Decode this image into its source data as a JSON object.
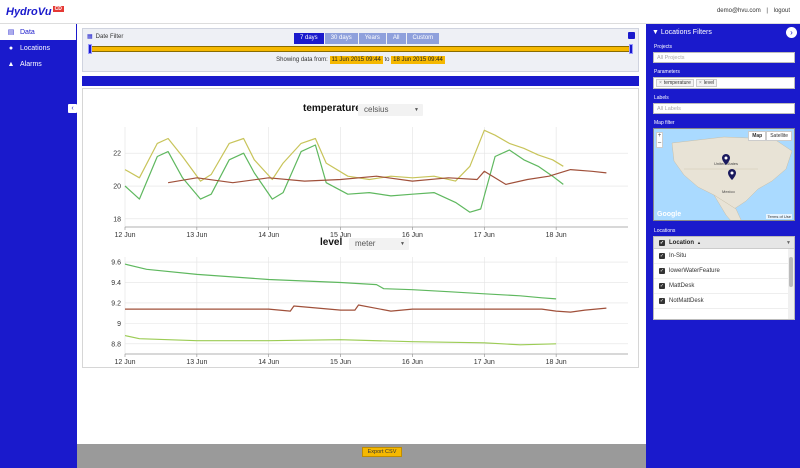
{
  "header": {
    "logo": {
      "text": "HydroVu",
      "badge": "CD"
    },
    "user_email": "demo@hvu.com",
    "logout_label": "logout"
  },
  "sidebar": {
    "items": [
      {
        "label": "Data",
        "icon": "chart-icon",
        "active": true
      },
      {
        "label": "Locations",
        "icon": "map-pin-icon",
        "active": false
      },
      {
        "label": "Alarms",
        "icon": "bell-icon",
        "active": false
      }
    ],
    "collapse_icon": "chevron-left-icon"
  },
  "date_filter": {
    "title": "Date Filter",
    "tabs": [
      {
        "label": "7 days",
        "active": true
      },
      {
        "label": "30 days",
        "active": false
      },
      {
        "label": "Years",
        "active": false
      },
      {
        "label": "All",
        "active": false
      },
      {
        "label": "Custom",
        "active": false
      }
    ],
    "range_prefix": "Showing data from:",
    "range_from": "11 Jun 2015 09:44",
    "range_to_word": "to",
    "range_to": "18 Jun 2015 09:44"
  },
  "charts": {
    "temperature": {
      "title": "temperature",
      "unit": "celsius"
    },
    "level": {
      "title": "level",
      "unit": "meter"
    }
  },
  "footer": {
    "export_label": "Export CSV"
  },
  "right_panel": {
    "title": "Locations Filters",
    "projects_label": "Projects",
    "projects_placeholder": "All Projects",
    "parameters_label": "Parameters",
    "parameters": [
      "temperature",
      "level"
    ],
    "labels_label": "Labels",
    "labels_placeholder": "All Labels",
    "map_filter_label": "Map filter",
    "map_tabs": [
      {
        "label": "Map",
        "active": true
      },
      {
        "label": "Satellite",
        "active": false
      }
    ],
    "map_google": "Google",
    "map_terms": "Terms of Use",
    "map_places": [
      "United States",
      "Mexico"
    ],
    "locations_label": "Locations",
    "locations_column": "Location",
    "locations": [
      "In-Situ",
      "lowerWaterFeature",
      "MattDesk",
      "NotMattDesk"
    ]
  },
  "colors": {
    "brand_blue": "#1a1acc",
    "accent_yellow": "#f5b800"
  },
  "chart_data": [
    {
      "type": "line",
      "title": "temperature",
      "ylabel": "celsius",
      "x_ticks": [
        "12 Jun",
        "13 Jun",
        "14 Jun",
        "15 Jun",
        "16 Jun",
        "17 Jun",
        "18 Jun"
      ],
      "y_ticks": [
        18,
        20,
        22
      ],
      "ylim": [
        17.5,
        23.6
      ],
      "grid": true,
      "series": [
        {
          "color": "#c8c45a",
          "x": [
            0,
            0.2,
            0.45,
            0.6,
            0.8,
            1.05,
            1.2,
            1.45,
            1.65,
            1.8,
            2.05,
            2.2,
            2.45,
            2.65,
            2.8,
            3.1,
            3.4,
            3.7,
            4.0,
            4.3,
            4.6,
            4.8,
            5.0,
            5.15,
            5.35,
            5.55,
            5.75,
            5.95,
            6.1
          ],
          "y": [
            21.0,
            20.5,
            22.6,
            22.9,
            21.8,
            20.3,
            20.7,
            22.6,
            22.9,
            21.6,
            20.4,
            21.4,
            22.6,
            22.9,
            21.4,
            20.6,
            20.4,
            20.6,
            20.5,
            20.6,
            20.3,
            21.2,
            23.4,
            23.1,
            22.6,
            22.3,
            21.9,
            21.6,
            21.2
          ]
        },
        {
          "color": "#5fb85f",
          "x": [
            0,
            0.2,
            0.45,
            0.6,
            0.8,
            1.05,
            1.2,
            1.45,
            1.65,
            1.8,
            2.05,
            2.2,
            2.45,
            2.65,
            2.8,
            3.1,
            3.4,
            3.7,
            4.0,
            4.3,
            4.6,
            4.8,
            4.95,
            5.15,
            5.35,
            5.55,
            5.75,
            5.95,
            6.1
          ],
          "y": [
            20.0,
            19.2,
            21.8,
            22.1,
            20.5,
            19.2,
            19.5,
            21.6,
            22.0,
            20.8,
            19.2,
            19.6,
            22.1,
            22.5,
            20.2,
            19.5,
            19.6,
            19.4,
            19.5,
            19.6,
            19.0,
            18.4,
            18.6,
            21.8,
            22.2,
            21.6,
            21.2,
            20.6,
            20.1
          ]
        },
        {
          "color": "#a0503a",
          "x": [
            0.6,
            1.0,
            1.5,
            2.0,
            2.5,
            3.0,
            3.5,
            4.0,
            4.5,
            4.9,
            5.0,
            5.3,
            5.6,
            5.9,
            6.2,
            6.5,
            6.7
          ],
          "y": [
            20.2,
            20.5,
            20.2,
            20.5,
            20.3,
            20.4,
            20.6,
            20.3,
            20.5,
            20.4,
            20.9,
            20.1,
            20.4,
            20.6,
            21.0,
            20.9,
            20.8
          ]
        }
      ]
    },
    {
      "type": "line",
      "title": "level",
      "ylabel": "meter",
      "x_ticks": [
        "12 Jun",
        "13 Jun",
        "14 Jun",
        "15 Jun",
        "16 Jun",
        "17 Jun",
        "18 Jun"
      ],
      "y_ticks": [
        8.8,
        9,
        9.2,
        9.4,
        9.6
      ],
      "ylim": [
        8.7,
        9.65
      ],
      "grid": true,
      "series": [
        {
          "color": "#5fb85f",
          "x": [
            0,
            0.3,
            1.0,
            2.0,
            3.0,
            3.5,
            3.6,
            4.0,
            4.5,
            5.0,
            5.5,
            5.8,
            6.0
          ],
          "y": [
            9.58,
            9.53,
            9.48,
            9.43,
            9.4,
            9.38,
            9.34,
            9.33,
            9.31,
            9.29,
            9.27,
            9.25,
            9.24
          ]
        },
        {
          "color": "#a0503a",
          "x": [
            0,
            0.5,
            1.0,
            1.5,
            2.0,
            2.3,
            2.35,
            3.0,
            3.2,
            3.25,
            3.7,
            4.0,
            4.5,
            5.0,
            5.5,
            5.8,
            6.0,
            6.2,
            6.4,
            6.7
          ],
          "y": [
            9.14,
            9.14,
            9.14,
            9.14,
            9.14,
            9.12,
            9.17,
            9.13,
            9.13,
            9.18,
            9.12,
            9.14,
            9.14,
            9.14,
            9.14,
            9.14,
            9.12,
            9.11,
            9.13,
            9.15
          ]
        },
        {
          "color": "#9ccc55",
          "x": [
            0,
            0.2,
            1.0,
            2.0,
            3.0,
            4.0,
            5.0,
            5.5,
            6.0
          ],
          "y": [
            8.88,
            8.85,
            8.83,
            8.83,
            8.84,
            8.82,
            8.81,
            8.79,
            8.8
          ]
        }
      ]
    }
  ]
}
